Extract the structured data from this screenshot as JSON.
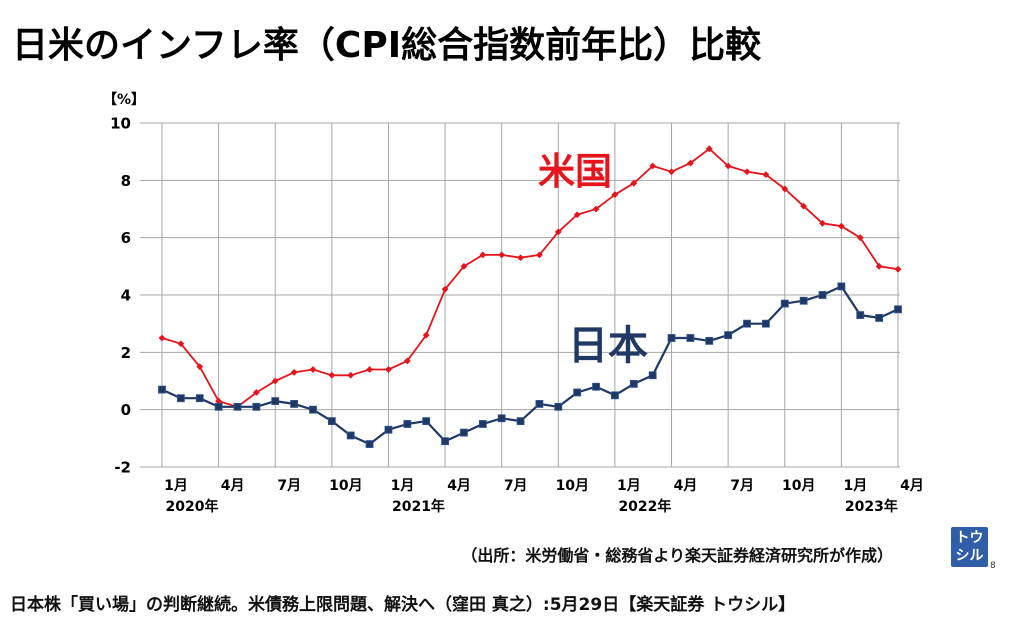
{
  "chart_data": {
    "type": "line",
    "title": "日米のインフレ率（CPI総合指数前年比）比較",
    "ylabel": "【%】",
    "ylim": [
      -2,
      10
    ],
    "yticks": [
      10,
      8,
      6,
      4,
      2,
      0,
      -2
    ],
    "grid": true,
    "x": [
      "2020-01",
      "2020-02",
      "2020-03",
      "2020-04",
      "2020-05",
      "2020-06",
      "2020-07",
      "2020-08",
      "2020-09",
      "2020-10",
      "2020-11",
      "2020-12",
      "2021-01",
      "2021-02",
      "2021-03",
      "2021-04",
      "2021-05",
      "2021-06",
      "2021-07",
      "2021-08",
      "2021-09",
      "2021-10",
      "2021-11",
      "2021-12",
      "2022-01",
      "2022-02",
      "2022-03",
      "2022-04",
      "2022-05",
      "2022-06",
      "2022-07",
      "2022-08",
      "2022-09",
      "2022-10",
      "2022-11",
      "2022-12",
      "2023-01",
      "2023-02",
      "2023-03",
      "2023-04"
    ],
    "xticks": [
      {
        "x": "2020-01",
        "label": "1月",
        "year": "2020年"
      },
      {
        "x": "2020-04",
        "label": "4月"
      },
      {
        "x": "2020-07",
        "label": "7月"
      },
      {
        "x": "2020-10",
        "label": "10月"
      },
      {
        "x": "2021-01",
        "label": "1月",
        "year": "2021年"
      },
      {
        "x": "2021-04",
        "label": "4月"
      },
      {
        "x": "2021-07",
        "label": "7月"
      },
      {
        "x": "2021-10",
        "label": "10月"
      },
      {
        "x": "2022-01",
        "label": "1月",
        "year": "2022年"
      },
      {
        "x": "2022-04",
        "label": "4月"
      },
      {
        "x": "2022-07",
        "label": "7月"
      },
      {
        "x": "2022-10",
        "label": "10月"
      },
      {
        "x": "2023-01",
        "label": "1月",
        "year": "2023年"
      },
      {
        "x": "2023-04",
        "label": "4月"
      }
    ],
    "series": [
      {
        "name": "米国",
        "color": "#e8141c",
        "values": [
          2.5,
          2.3,
          1.5,
          0.3,
          0.1,
          0.6,
          1.0,
          1.3,
          1.4,
          1.2,
          1.2,
          1.4,
          1.4,
          1.7,
          2.6,
          4.2,
          5.0,
          5.4,
          5.4,
          5.3,
          5.4,
          6.2,
          6.8,
          7.0,
          7.5,
          7.9,
          8.5,
          8.3,
          8.6,
          9.1,
          8.5,
          8.3,
          8.2,
          7.7,
          7.1,
          6.5,
          6.4,
          6.0,
          5.0,
          4.9
        ]
      },
      {
        "name": "日本",
        "color": "#1f3864",
        "values": [
          0.7,
          0.4,
          0.4,
          0.1,
          0.1,
          0.1,
          0.3,
          0.2,
          0.0,
          -0.4,
          -0.9,
          -1.2,
          -0.7,
          -0.5,
          -0.4,
          -1.1,
          -0.8,
          -0.5,
          -0.3,
          -0.4,
          0.2,
          0.1,
          0.6,
          0.8,
          0.5,
          0.9,
          1.2,
          2.5,
          2.5,
          2.4,
          2.6,
          3.0,
          3.0,
          3.7,
          3.8,
          4.0,
          4.3,
          3.3,
          3.2,
          3.5
        ]
      }
    ]
  },
  "source_note": "（出所：米労働省・総務省より楽天証券経済研究所が作成）",
  "logo": {
    "line1": "トウ",
    "line2": "シル",
    "color": "#2f5da8"
  },
  "page_number": "8",
  "footer_caption": "日本株「買い場」の判断継続。米債務上限問題、解決へ（窪田 真之）:5月29日【楽天証券 トウシル】"
}
